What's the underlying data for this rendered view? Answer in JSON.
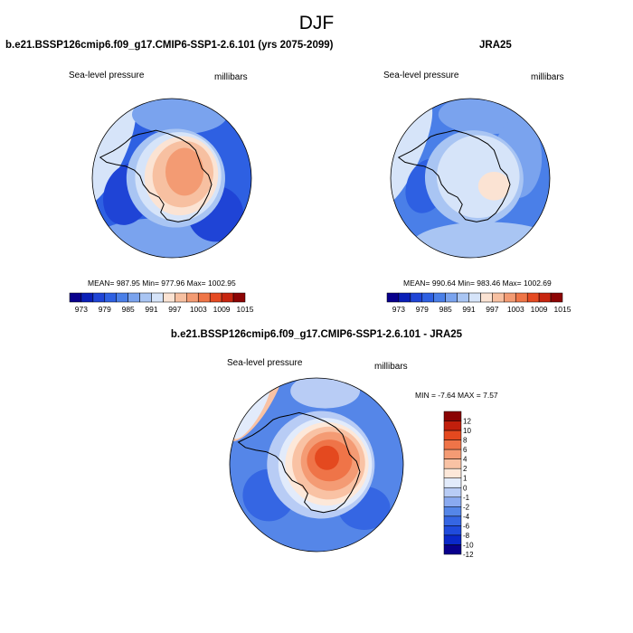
{
  "figure": {
    "season_title": "DJF",
    "left_title": "b.e21.BSSP126cmip6.f09_g17.CMIP6-SSP1-2.6.101 (yrs 2075-2099)",
    "right_title": "JRA25",
    "diff_title": "b.e21.BSSP126cmip6.f09_g17.CMIP6-SSP1-2.6.101 - JRA25"
  },
  "panels": {
    "left": {
      "variable": "Sea-level pressure",
      "units": "millibars",
      "stats": "MEAN= 987.95  Min= 977.96  Max= 1002.95"
    },
    "right": {
      "variable": "Sea-level pressure",
      "units": "millibars",
      "stats": "MEAN= 990.64  Min= 983.46  Max= 1002.69"
    },
    "diff": {
      "variable": "Sea-level pressure",
      "units": "millibars",
      "stats": "MIN =  -7.64 MAX =   7.57"
    }
  },
  "colors": {
    "abs_palette": [
      "#08008c",
      "#0a1fb8",
      "#1f44d6",
      "#2e60e2",
      "#4a7fe8",
      "#7aa3ee",
      "#a9c5f3",
      "#d6e4f9",
      "#fbe3d3",
      "#f7c0a1",
      "#f39b73",
      "#ef7547",
      "#e54a22",
      "#c7250f",
      "#8c0404"
    ],
    "diff_palette": [
      "#08008c",
      "#0a28c9",
      "#1f4bdc",
      "#3566e3",
      "#5586e8",
      "#8aaaf0",
      "#b8ccf5",
      "#e2ebfb",
      "#fde8d9",
      "#f9c2a4",
      "#f49b74",
      "#ef7448",
      "#e4491f",
      "#c11f0c",
      "#8a0404"
    ],
    "coast": "#000000"
  },
  "chart_data": [
    {
      "type": "heatmap",
      "name": "model",
      "projection": "south-polar-stereographic",
      "title": "Sea-level pressure",
      "units": "millibars",
      "mean": 987.95,
      "min": 977.96,
      "max": 1002.95,
      "colorbar": {
        "orientation": "horizontal",
        "levels": [
          973,
          976,
          979,
          982,
          985,
          988,
          991,
          994,
          997,
          1000,
          1003,
          1006,
          1009,
          1012,
          1015
        ],
        "tick_labels": [
          "973",
          "979",
          "985",
          "991",
          "997",
          "1003",
          "1009",
          "1015"
        ]
      }
    },
    {
      "type": "heatmap",
      "name": "obs",
      "projection": "south-polar-stereographic",
      "title": "Sea-level pressure",
      "units": "millibars",
      "mean": 990.64,
      "min": 983.46,
      "max": 1002.69,
      "colorbar": {
        "orientation": "horizontal",
        "levels": [
          973,
          976,
          979,
          982,
          985,
          988,
          991,
          994,
          997,
          1000,
          1003,
          1006,
          1009,
          1012,
          1015
        ],
        "tick_labels": [
          "973",
          "979",
          "985",
          "991",
          "997",
          "1003",
          "1009",
          "1015"
        ]
      }
    },
    {
      "type": "heatmap",
      "name": "difference",
      "projection": "south-polar-stereographic",
      "title": "Sea-level pressure",
      "units": "millibars",
      "min": -7.64,
      "max": 7.57,
      "colorbar": {
        "orientation": "vertical",
        "levels": [
          -12,
          -10,
          -8,
          -6,
          -4,
          -2,
          -1,
          0,
          1,
          2,
          4,
          6,
          8,
          10,
          12
        ],
        "tick_labels": [
          "12",
          "10",
          "8",
          "6",
          "4",
          "2",
          "1",
          "0",
          "-1",
          "-2",
          "-4",
          "-6",
          "-8",
          "-10",
          "-12"
        ]
      }
    }
  ]
}
